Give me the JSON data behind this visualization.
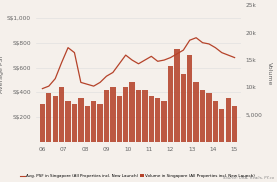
{
  "x_labels": [
    "06",
    "07",
    "08",
    "09",
    "10",
    "11",
    "12",
    "13",
    "14",
    "15"
  ],
  "bar_values": [
    7000,
    9000,
    8500,
    10000,
    7500,
    7000,
    8000,
    6500,
    7500,
    7000,
    9500,
    10000,
    8500,
    10000,
    11000,
    9500,
    9500,
    8500,
    8000,
    7500,
    14000,
    17000,
    12500,
    16000,
    11000,
    9500,
    9000,
    7500,
    6000,
    8000,
    6500
  ],
  "bar_x": [
    0,
    0.3,
    0.6,
    0.9,
    1.2,
    1.5,
    1.8,
    2.1,
    2.4,
    2.7,
    3.0,
    3.3,
    3.6,
    3.9,
    4.2,
    4.5,
    4.8,
    5.1,
    5.4,
    5.7,
    6.0,
    6.3,
    6.6,
    6.9,
    7.2,
    7.5,
    7.8,
    8.1,
    8.4,
    8.7,
    9.0
  ],
  "line_x": [
    0,
    0.3,
    0.6,
    0.9,
    1.2,
    1.5,
    1.8,
    2.1,
    2.4,
    2.7,
    3.0,
    3.3,
    3.6,
    3.9,
    4.2,
    4.5,
    4.8,
    5.1,
    5.4,
    5.7,
    6.0,
    6.3,
    6.6,
    6.9,
    7.2,
    7.5,
    7.8,
    8.1,
    8.4,
    8.7,
    9.0
  ],
  "line_values": [
    430,
    450,
    510,
    640,
    760,
    720,
    480,
    465,
    450,
    480,
    530,
    560,
    630,
    700,
    660,
    630,
    660,
    690,
    650,
    660,
    680,
    710,
    740,
    820,
    840,
    800,
    790,
    760,
    720,
    700,
    680
  ],
  "bar_color": "#b5432a",
  "line_color": "#b5432a",
  "bg_color": "#f5f0eb",
  "left_ylabel": "Average PSF",
  "right_ylabel": "Volume",
  "legend1": "Avg. PSF in Singapore (All Properties incl. New Launch)",
  "legend2": "Volume in Singapore (All Properties incl. New Launch)",
  "source_text": "Source: URA, Realis, PY.co",
  "axis_fontsize": 4.5,
  "tick_fontsize": 4.2,
  "legend_fontsize": 3.0
}
